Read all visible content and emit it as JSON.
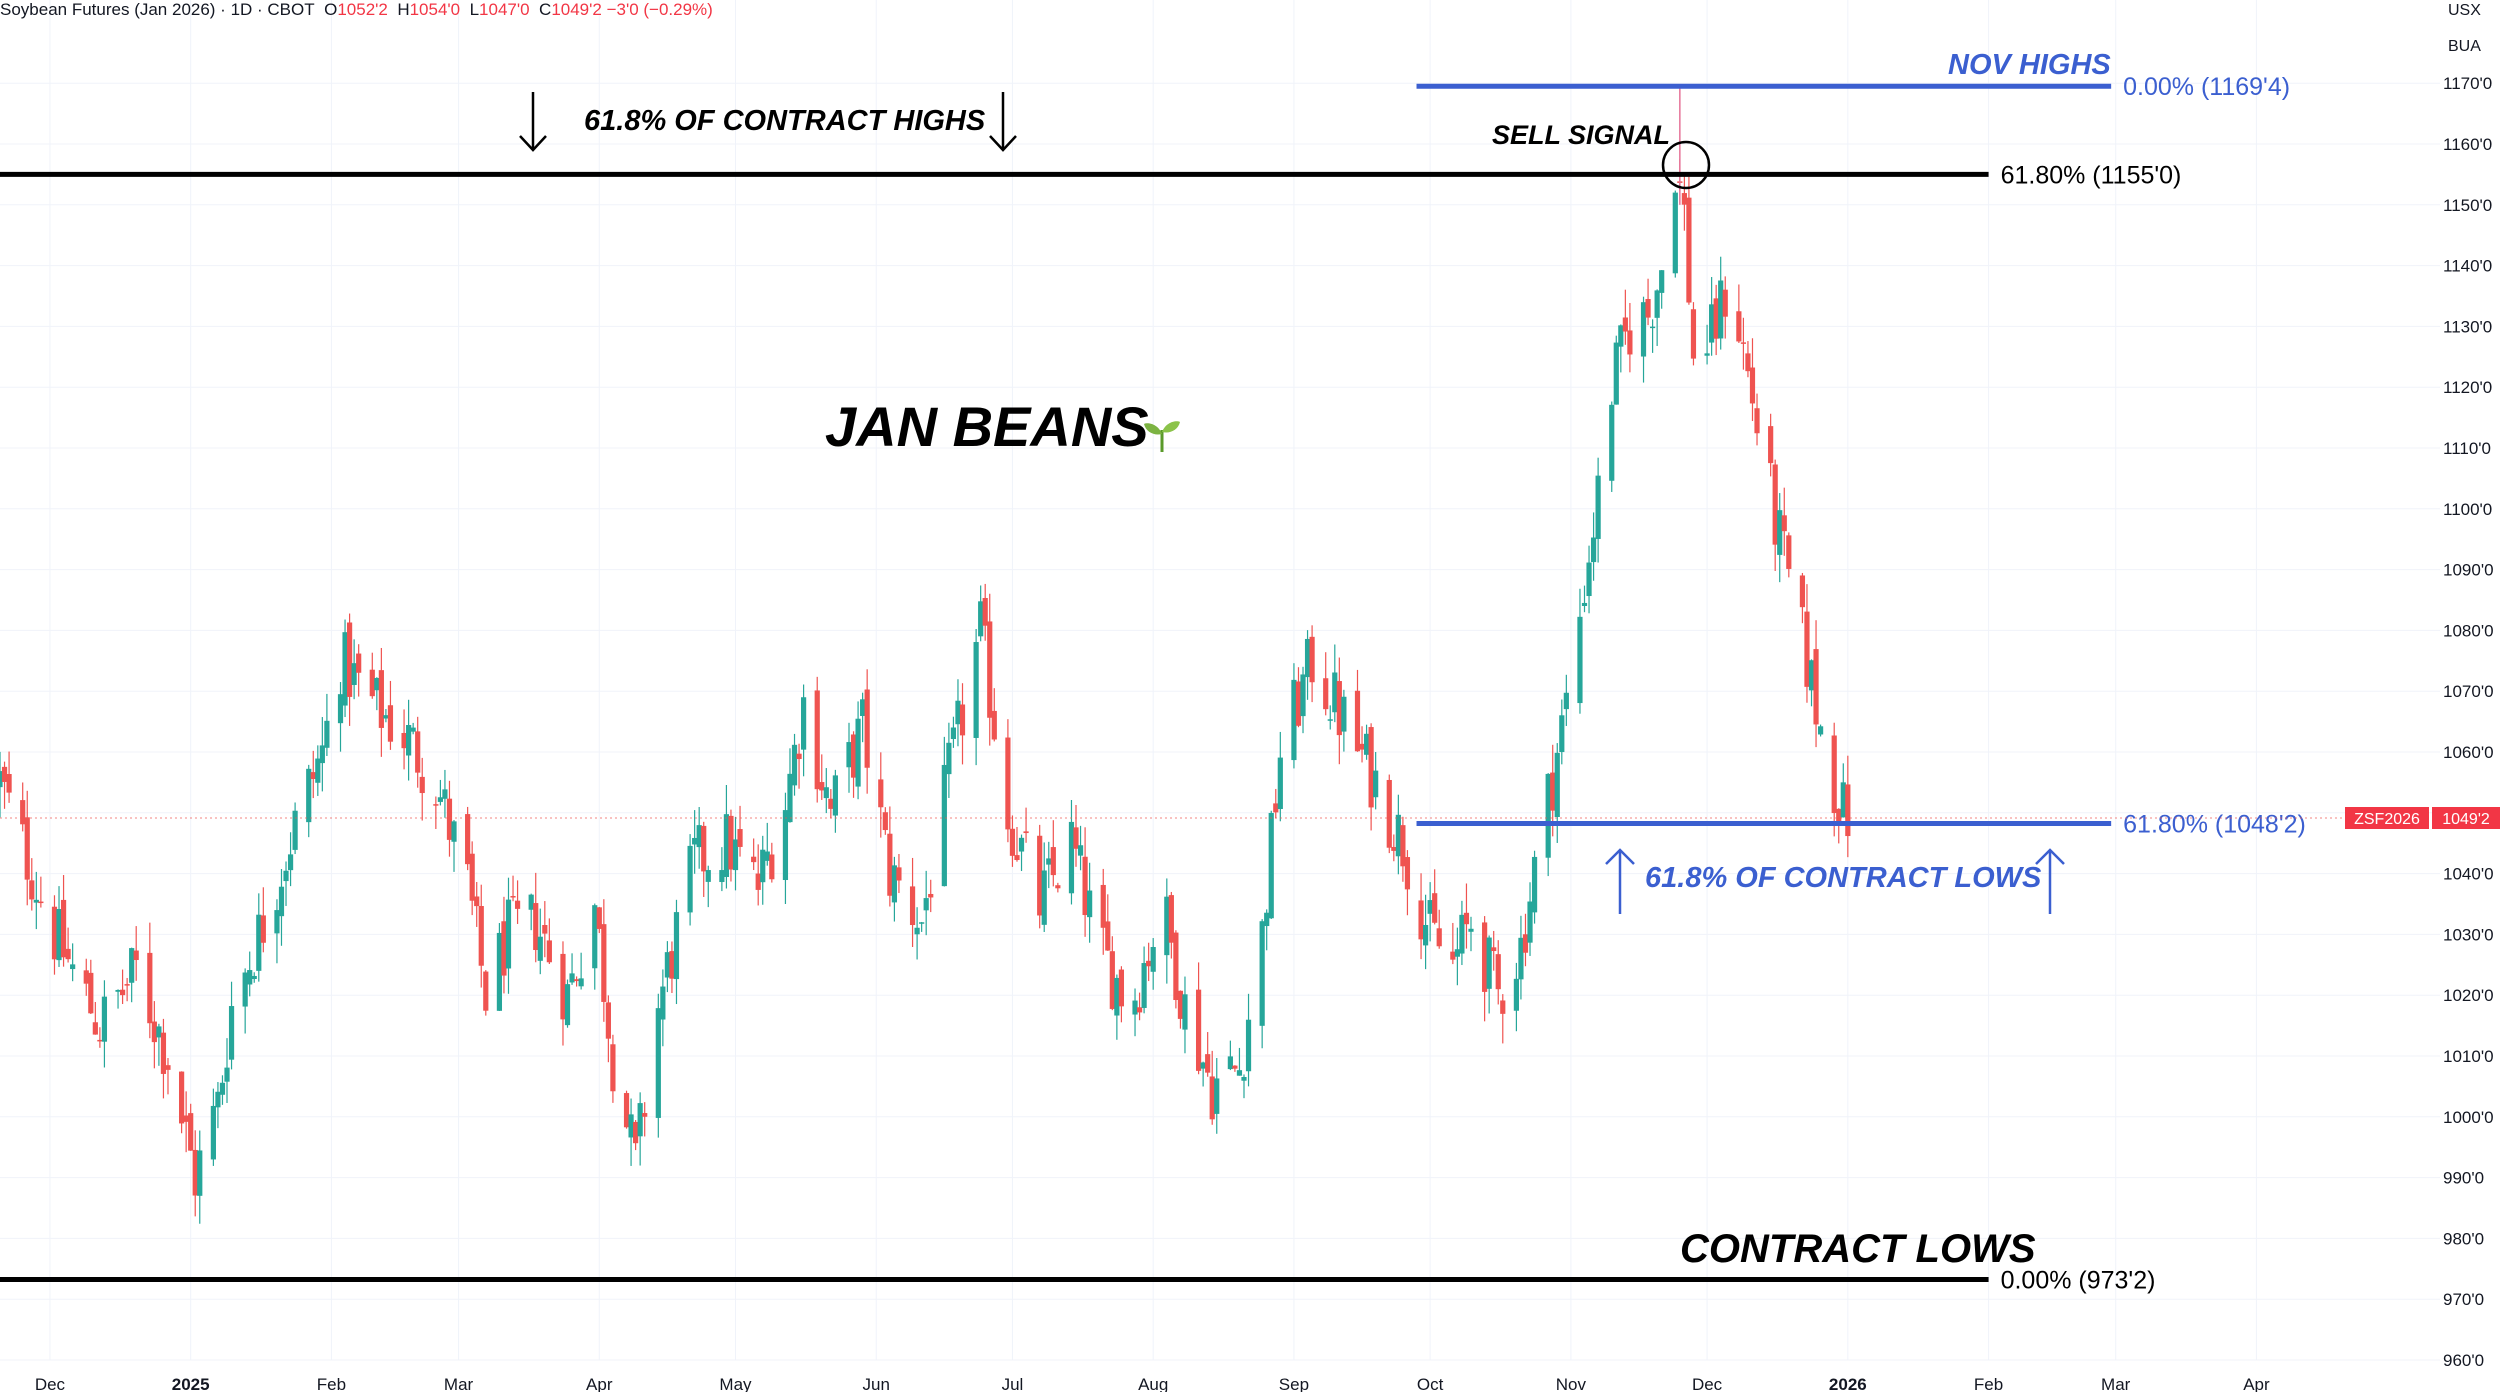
{
  "header": {
    "symbol_text": "Soybean Futures (Jan 2026) · 1D · CBOT",
    "o_label": "O",
    "o_value": "1052'2",
    "h_label": "H",
    "h_value": "1054'0",
    "l_label": "L",
    "l_value": "1047'0",
    "c_label": "C",
    "c_value": "1049'2",
    "change": "−3'0 (−0.29%)"
  },
  "units": {
    "currency": "USX",
    "per": "BUA"
  },
  "colors": {
    "up": "#26a69a",
    "down": "#ef5350",
    "fib_black": "#000000",
    "fib_blue": "#3b5fd0",
    "price_tag": "#f23645"
  },
  "chart_data": {
    "type": "candlestick",
    "title": "JAN BEANS",
    "y_axis": {
      "min": 960,
      "max": 1170,
      "step": 10,
      "ticks": [
        "960'0",
        "970'0",
        "980'0",
        "990'0",
        "1000'0",
        "1010'0",
        "1020'0",
        "1030'0",
        "1040'0",
        "1050'0",
        "1060'0",
        "1070'0",
        "1080'0",
        "1090'0",
        "1100'0",
        "1110'0",
        "1120'0",
        "1130'0",
        "1140'0",
        "1150'0",
        "1160'0",
        "1170'0"
      ]
    },
    "x_axis": {
      "start": "2024-11-20",
      "end": "2026-04-15",
      "labels": [
        {
          "date": "2024-12-01",
          "text": "Dec",
          "bold": false
        },
        {
          "date": "2025-01-01",
          "text": "2025",
          "bold": true
        },
        {
          "date": "2025-02-01",
          "text": "Feb",
          "bold": false
        },
        {
          "date": "2025-03-01",
          "text": "Mar",
          "bold": false
        },
        {
          "date": "2025-04-01",
          "text": "Apr",
          "bold": false
        },
        {
          "date": "2025-05-01",
          "text": "May",
          "bold": false
        },
        {
          "date": "2025-06-01",
          "text": "Jun",
          "bold": false
        },
        {
          "date": "2025-07-01",
          "text": "Jul",
          "bold": false
        },
        {
          "date": "2025-08-01",
          "text": "Aug",
          "bold": false
        },
        {
          "date": "2025-09-01",
          "text": "Sep",
          "bold": false
        },
        {
          "date": "2025-10-01",
          "text": "Oct",
          "bold": false
        },
        {
          "date": "2025-11-01",
          "text": "Nov",
          "bold": false
        },
        {
          "date": "2025-12-01",
          "text": "Dec",
          "bold": false
        },
        {
          "date": "2026-01-01",
          "text": "2026",
          "bold": true
        },
        {
          "date": "2026-02-01",
          "text": "Feb",
          "bold": false
        },
        {
          "date": "2026-03-01",
          "text": "Mar",
          "bold": false
        },
        {
          "date": "2026-04-01",
          "text": "Apr",
          "bold": false
        }
      ]
    },
    "close_path": [
      [
        "2024-11-20",
        1055
      ],
      [
        "2024-12-02",
        1030
      ],
      [
        "2024-12-12",
        1015
      ],
      [
        "2024-12-20",
        1024
      ],
      [
        "2024-12-27",
        1010
      ],
      [
        "2025-01-02",
        990
      ],
      [
        "2025-01-07",
        1002
      ],
      [
        "2025-01-10",
        1018
      ],
      [
        "2025-01-17",
        1032
      ],
      [
        "2025-01-24",
        1048
      ],
      [
        "2025-01-30",
        1060
      ],
      [
        "2025-02-03",
        1075
      ],
      [
        "2025-02-10",
        1068
      ],
      [
        "2025-02-18",
        1062
      ],
      [
        "2025-02-24",
        1055
      ],
      [
        "2025-03-03",
        1038
      ],
      [
        "2025-03-07",
        1020
      ],
      [
        "2025-03-12",
        1030
      ],
      [
        "2025-03-18",
        1032
      ],
      [
        "2025-03-25",
        1020
      ],
      [
        "2025-03-31",
        1035
      ],
      [
        "2025-04-04",
        1010
      ],
      [
        "2025-04-09",
        992
      ],
      [
        "2025-04-14",
        1018
      ],
      [
        "2025-04-22",
        1042
      ],
      [
        "2025-04-29",
        1045
      ],
      [
        "2025-05-06",
        1038
      ],
      [
        "2025-05-12",
        1052
      ],
      [
        "2025-05-16",
        1068
      ],
      [
        "2025-05-22",
        1050
      ],
      [
        "2025-05-29",
        1064
      ],
      [
        "2025-06-04",
        1040
      ],
      [
        "2025-06-11",
        1032
      ],
      [
        "2025-06-17",
        1056
      ],
      [
        "2025-06-24",
        1080
      ],
      [
        "2025-06-30",
        1050
      ],
      [
        "2025-07-07",
        1035
      ],
      [
        "2025-07-14",
        1045
      ],
      [
        "2025-07-20",
        1028
      ],
      [
        "2025-07-27",
        1018
      ],
      [
        "2025-08-03",
        1035
      ],
      [
        "2025-08-08",
        1018
      ],
      [
        "2025-08-14",
        1005
      ],
      [
        "2025-08-20",
        1008
      ],
      [
        "2025-08-25",
        1030
      ],
      [
        "2025-08-29",
        1060
      ],
      [
        "2025-09-05",
        1075
      ],
      [
        "2025-09-12",
        1065
      ],
      [
        "2025-09-19",
        1055
      ],
      [
        "2025-09-25",
        1045
      ],
      [
        "2025-10-01",
        1030
      ],
      [
        "2025-10-06",
        1025
      ],
      [
        "2025-10-10",
        1032
      ],
      [
        "2025-10-16",
        1020
      ],
      [
        "2025-10-21",
        1028
      ],
      [
        "2025-10-25",
        1045
      ],
      [
        "2025-10-29",
        1060
      ],
      [
        "2025-11-01",
        1072
      ],
      [
        "2025-11-04",
        1088
      ],
      [
        "2025-11-07",
        1102
      ],
      [
        "2025-11-10",
        1120
      ],
      [
        "2025-11-14",
        1130
      ],
      [
        "2025-11-18",
        1132
      ],
      [
        "2025-11-21",
        1140
      ],
      [
        "2025-11-24",
        1157
      ],
      [
        "2025-11-26",
        1148
      ],
      [
        "2025-11-28",
        1125
      ],
      [
        "2025-12-02",
        1128
      ],
      [
        "2025-12-06",
        1138
      ],
      [
        "2025-12-08",
        1130
      ],
      [
        "2025-12-11",
        1118
      ],
      [
        "2025-12-16",
        1098
      ],
      [
        "2025-12-19",
        1088
      ],
      [
        "2025-12-23",
        1075
      ],
      [
        "2025-12-27",
        1060
      ],
      [
        "2025-12-31",
        1050
      ],
      [
        "2026-01-01",
        1049.25
      ]
    ],
    "last_price": {
      "symbol": "ZSF2026",
      "value": "1049'2",
      "level": 1049.25
    },
    "lines": [
      {
        "id": "fib-6180-top",
        "level": 1155,
        "color": "black",
        "start": "2024-11-20",
        "end": "2026-02-01",
        "label": "61.80% (1155'0)"
      },
      {
        "id": "fib-0-bottom",
        "level": 973.25,
        "color": "black",
        "start": "2024-11-20",
        "end": "2026-02-01",
        "label": "0.00% (973'2)"
      },
      {
        "id": "fib-0-top",
        "level": 1169.5,
        "color": "blue",
        "start": "2025-09-28",
        "end": "2026-02-28",
        "label": "0.00% (1169'4)"
      },
      {
        "id": "fib-6180-bottom",
        "level": 1048.25,
        "color": "blue",
        "start": "2025-09-28",
        "end": "2026-02-28",
        "label": "61.80% (1048'2)"
      }
    ],
    "annotations": {
      "contract_highs": "61.8% OF CONTRACT HIGHS",
      "sell_signal": "SELL SIGNAL",
      "nov_highs": "NOV HIGHS",
      "contract_lows_pct": "61.8% OF CONTRACT LOWS",
      "contract_lows": "CONTRACT LOWS"
    },
    "grid": true
  }
}
